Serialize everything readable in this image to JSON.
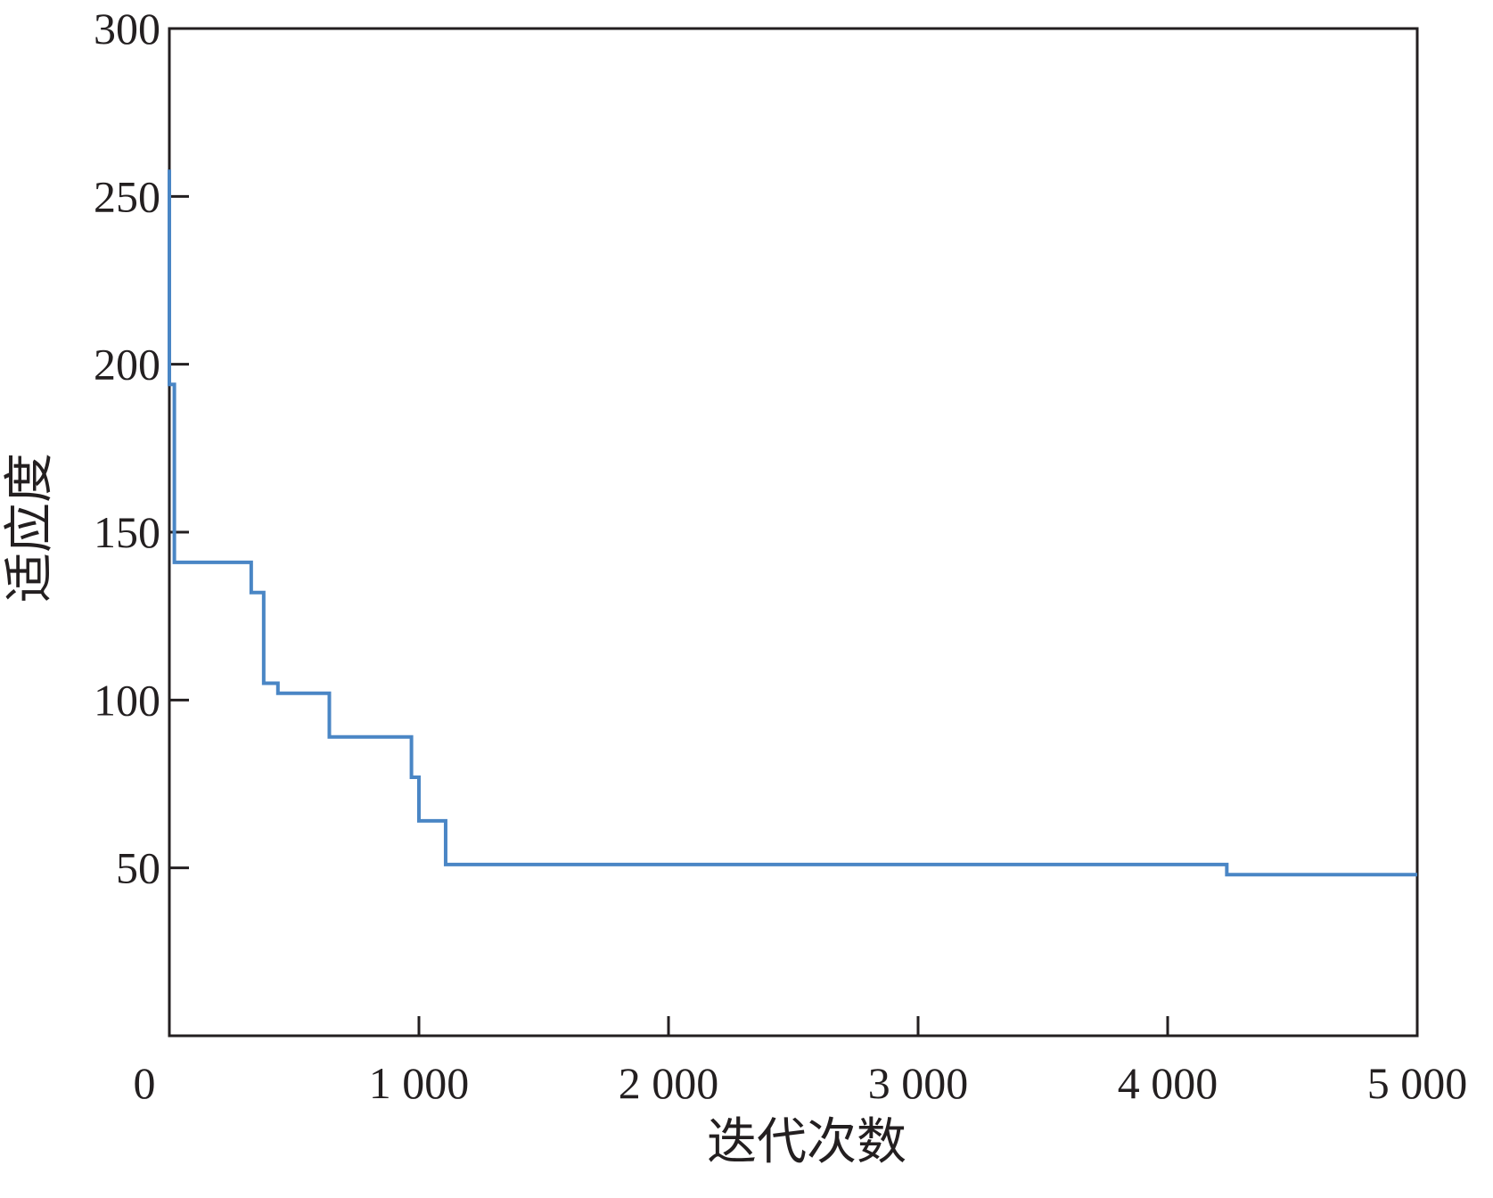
{
  "chart_data": {
    "type": "line",
    "step": "post",
    "x_label": "迭代次数",
    "y_label": "适应度",
    "x": [
      0,
      0,
      20,
      328,
      378,
      435,
      641,
      970,
      1000,
      1107,
      4237,
      5000
    ],
    "series": [
      {
        "color": "#4a86c5",
        "values": [
          258,
          194,
          141,
          132,
          105,
          102,
          89,
          77,
          64,
          51,
          48,
          48
        ]
      }
    ],
    "xlim": [
      0,
      5000
    ],
    "xticks": [
      0,
      {
        "value": 1000,
        "label": "1 000"
      },
      {
        "value": 2000,
        "label": "2 000"
      },
      {
        "value": 3000,
        "label": "3 000"
      },
      {
        "value": 4000,
        "label": "4 000"
      },
      {
        "value": 5000,
        "label": "5 000"
      }
    ],
    "ylim": [
      0,
      300
    ],
    "yticks": [
      50,
      100,
      150,
      200,
      250,
      300
    ],
    "grid": false
  }
}
